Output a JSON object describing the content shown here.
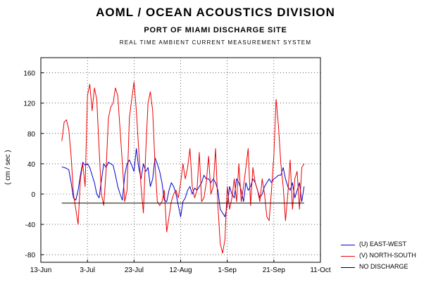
{
  "header": {
    "title": "AOML / OCEAN ACOUSTICS DIVISION",
    "subtitle": "PORT OF MIAMI DISCHARGE SITE",
    "system": "REAL TIME AMBIENT CURRENT MEASUREMENT SYSTEM"
  },
  "chart_data": {
    "type": "line",
    "ylabel": "( cm / sec )",
    "ylim": [
      -90,
      180
    ],
    "yticks": [
      160,
      120,
      80,
      40,
      0,
      -40,
      -80
    ],
    "xlim": [
      "2000-06-13",
      "2000-10-11"
    ],
    "xticks": [
      "13-Jun",
      "3-Jul",
      "23-Jul",
      "12-Aug",
      "1-Sep",
      "21-Sep",
      "11-Oct"
    ],
    "grid": true,
    "legend_position": "bottom-right",
    "series": [
      {
        "name": "(U) EAST-WEST",
        "color": "#0000cc",
        "x": [
          "2000-06-22",
          "2000-06-24",
          "2000-06-25",
          "2000-06-26",
          "2000-06-27",
          "2000-06-28",
          "2000-06-29",
          "2000-06-30",
          "2000-07-01",
          "2000-07-02",
          "2000-07-03",
          "2000-07-04",
          "2000-07-05",
          "2000-07-06",
          "2000-07-07",
          "2000-07-08",
          "2000-07-09",
          "2000-07-10",
          "2000-07-11",
          "2000-07-12",
          "2000-07-13",
          "2000-07-14",
          "2000-07-15",
          "2000-07-16",
          "2000-07-17",
          "2000-07-18",
          "2000-07-19",
          "2000-07-20",
          "2000-07-21",
          "2000-07-22",
          "2000-07-23",
          "2000-07-24",
          "2000-07-25",
          "2000-07-26",
          "2000-07-27",
          "2000-07-28",
          "2000-07-29",
          "2000-07-30",
          "2000-07-31",
          "2000-08-01",
          "2000-08-02",
          "2000-08-03",
          "2000-08-04",
          "2000-08-05",
          "2000-08-06",
          "2000-08-07",
          "2000-08-08",
          "2000-08-09",
          "2000-08-10",
          "2000-08-11",
          "2000-08-12",
          "2000-08-13",
          "2000-08-14",
          "2000-08-15",
          "2000-08-16",
          "2000-08-17",
          "2000-08-18",
          "2000-08-19",
          "2000-08-20",
          "2000-08-21",
          "2000-08-22",
          "2000-08-23",
          "2000-08-24",
          "2000-08-25",
          "2000-08-26",
          "2000-08-27",
          "2000-08-28",
          "2000-08-29",
          "2000-08-30",
          "2000-08-31",
          "2000-09-01",
          "2000-09-02",
          "2000-09-03",
          "2000-09-04",
          "2000-09-05",
          "2000-09-06",
          "2000-09-07",
          "2000-09-08",
          "2000-09-09",
          "2000-09-10",
          "2000-09-11",
          "2000-09-12",
          "2000-09-13",
          "2000-09-14",
          "2000-09-15",
          "2000-09-16",
          "2000-09-17",
          "2000-09-18",
          "2000-09-19",
          "2000-09-20",
          "2000-09-21",
          "2000-09-22",
          "2000-09-23",
          "2000-09-24",
          "2000-09-25",
          "2000-09-26",
          "2000-09-27",
          "2000-09-28",
          "2000-09-29",
          "2000-09-30",
          "2000-10-01",
          "2000-10-02",
          "2000-10-03",
          "2000-10-04"
        ],
        "values": [
          36,
          34,
          32,
          15,
          -5,
          -8,
          5,
          25,
          42,
          38,
          40,
          35,
          25,
          15,
          0,
          -5,
          18,
          40,
          35,
          42,
          40,
          38,
          25,
          10,
          0,
          -8,
          25,
          40,
          45,
          38,
          30,
          60,
          35,
          20,
          40,
          30,
          35,
          10,
          20,
          48,
          40,
          30,
          15,
          -8,
          -10,
          5,
          15,
          10,
          0,
          -15,
          -30,
          -10,
          -5,
          5,
          10,
          0,
          8,
          5,
          10,
          15,
          25,
          20,
          20,
          15,
          20,
          15,
          5,
          -20,
          -25,
          -30,
          -15,
          10,
          0,
          -5,
          20,
          15,
          5,
          -10,
          15,
          5,
          10,
          20,
          15,
          5,
          -5,
          0,
          10,
          15,
          20,
          15,
          20,
          22,
          25,
          25,
          35,
          20,
          10,
          5,
          15,
          -5,
          5,
          15,
          -10,
          10
        ]
      },
      {
        "name": "(V) NORTH-SOUTH",
        "color": "#ee0000",
        "x": [
          "2000-06-22",
          "2000-06-23",
          "2000-06-24",
          "2000-06-25",
          "2000-06-26",
          "2000-06-27",
          "2000-06-28",
          "2000-06-29",
          "2000-06-30",
          "2000-07-01",
          "2000-07-02",
          "2000-07-03",
          "2000-07-04",
          "2000-07-05",
          "2000-07-06",
          "2000-07-07",
          "2000-07-08",
          "2000-07-09",
          "2000-07-10",
          "2000-07-11",
          "2000-07-12",
          "2000-07-13",
          "2000-07-14",
          "2000-07-15",
          "2000-07-16",
          "2000-07-17",
          "2000-07-18",
          "2000-07-19",
          "2000-07-20",
          "2000-07-21",
          "2000-07-22",
          "2000-07-23",
          "2000-07-24",
          "2000-07-25",
          "2000-07-26",
          "2000-07-27",
          "2000-07-28",
          "2000-07-29",
          "2000-07-30",
          "2000-07-31",
          "2000-08-01",
          "2000-08-02",
          "2000-08-03",
          "2000-08-04",
          "2000-08-05",
          "2000-08-06",
          "2000-08-07",
          "2000-08-08",
          "2000-08-09",
          "2000-08-10",
          "2000-08-11",
          "2000-08-12",
          "2000-08-13",
          "2000-08-14",
          "2000-08-15",
          "2000-08-16",
          "2000-08-17",
          "2000-08-18",
          "2000-08-19",
          "2000-08-20",
          "2000-08-21",
          "2000-08-22",
          "2000-08-23",
          "2000-08-24",
          "2000-08-25",
          "2000-08-26",
          "2000-08-27",
          "2000-08-28",
          "2000-08-29",
          "2000-08-30",
          "2000-08-31",
          "2000-09-01",
          "2000-09-02",
          "2000-09-03",
          "2000-09-04",
          "2000-09-05",
          "2000-09-06",
          "2000-09-07",
          "2000-09-08",
          "2000-09-09",
          "2000-09-10",
          "2000-09-11",
          "2000-09-12",
          "2000-09-13",
          "2000-09-14",
          "2000-09-15",
          "2000-09-16",
          "2000-09-17",
          "2000-09-18",
          "2000-09-19",
          "2000-09-20",
          "2000-09-21",
          "2000-09-22",
          "2000-09-23",
          "2000-09-24",
          "2000-09-25",
          "2000-09-26",
          "2000-09-27",
          "2000-09-28",
          "2000-09-29",
          "2000-09-30",
          "2000-10-01",
          "2000-10-02",
          "2000-10-03",
          "2000-10-04"
        ],
        "values": [
          70,
          95,
          98,
          85,
          50,
          0,
          -20,
          -40,
          20,
          40,
          10,
          130,
          145,
          110,
          140,
          125,
          60,
          0,
          -15,
          30,
          100,
          115,
          120,
          140,
          130,
          85,
          40,
          -10,
          5,
          100,
          125,
          148,
          110,
          60,
          10,
          -25,
          55,
          120,
          135,
          110,
          40,
          -10,
          -15,
          -10,
          5,
          -50,
          -30,
          -10,
          0,
          5,
          -5,
          15,
          40,
          20,
          35,
          60,
          10,
          -5,
          5,
          55,
          -10,
          -5,
          15,
          50,
          0,
          10,
          60,
          -15,
          -65,
          -78,
          -60,
          10,
          -20,
          -5,
          20,
          -10,
          40,
          -10,
          10,
          35,
          60,
          -15,
          35,
          15,
          5,
          -10,
          20,
          0,
          -30,
          -35,
          5,
          50,
          125,
          90,
          40,
          10,
          -35,
          0,
          45,
          -20,
          20,
          30,
          -20,
          35,
          40
        ]
      },
      {
        "name": "NO DISCHARGE",
        "color": "#000000",
        "x": [
          "2000-06-22",
          "2000-10-04"
        ],
        "values": [
          -12,
          -12
        ]
      }
    ]
  }
}
